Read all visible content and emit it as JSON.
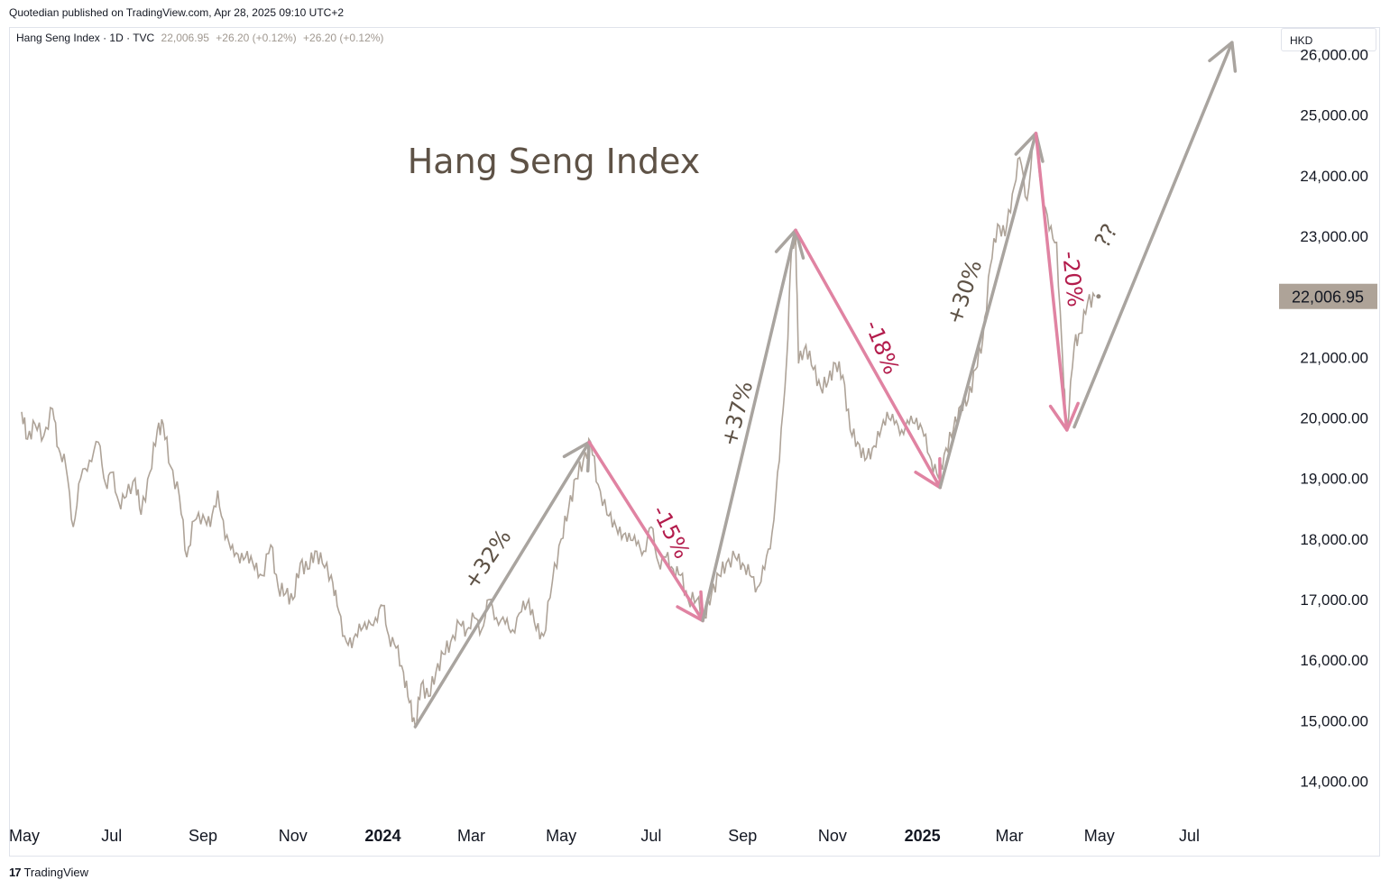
{
  "header": {
    "publisher": "Quotedian published on TradingView.com, Apr 28, 2025 09:10 UTC+2",
    "symbol_info": "Hang Seng Index · 1D · TVC",
    "last_value": "22,006.95",
    "change": "+26.20 (+0.12%)",
    "change_repeat": "+26.20 (+0.12%)",
    "currency": "HKD"
  },
  "footer": {
    "logo_mark": "17",
    "brand": "TradingView"
  },
  "colors": {
    "price_line": "#aea398",
    "up_arrow": "#a9a49f",
    "down_arrow": "#e083a2",
    "down_text": "#b31c4c",
    "title": "#5e5246",
    "price_tag_bg": "#aea398"
  },
  "chart_data": {
    "type": "line",
    "title": "Hang Seng Index",
    "ylim": [
      13500,
      26500
    ],
    "y_ticks": [
      "26,000.00",
      "25,000.00",
      "24,000.00",
      "23,000.00",
      "22,000.00",
      "21,000.00",
      "20,000.00",
      "19,000.00",
      "18,000.00",
      "17,000.00",
      "16,000.00",
      "15,000.00",
      "14,000.00"
    ],
    "y_tick_values": [
      26000,
      25000,
      24000,
      23000,
      22000,
      21000,
      20000,
      19000,
      18000,
      17000,
      16000,
      15000,
      14000
    ],
    "x_domain": [
      "2023-05-01",
      "2025-08-15"
    ],
    "x_ticks": [
      {
        "label": "May",
        "date": "2023-05-01",
        "bold": false
      },
      {
        "label": "Jul",
        "date": "2023-07-01",
        "bold": false
      },
      {
        "label": "Sep",
        "date": "2023-09-01",
        "bold": false
      },
      {
        "label": "Nov",
        "date": "2023-11-01",
        "bold": false
      },
      {
        "label": "2024",
        "date": "2024-01-01",
        "bold": true
      },
      {
        "label": "Mar",
        "date": "2024-03-01",
        "bold": false
      },
      {
        "label": "May",
        "date": "2024-05-01",
        "bold": false
      },
      {
        "label": "Jul",
        "date": "2024-07-01",
        "bold": false
      },
      {
        "label": "Sep",
        "date": "2024-09-01",
        "bold": false
      },
      {
        "label": "Nov",
        "date": "2024-11-01",
        "bold": false
      },
      {
        "label": "2025",
        "date": "2025-01-01",
        "bold": true
      },
      {
        "label": "Mar",
        "date": "2025-03-01",
        "bold": false
      },
      {
        "label": "May",
        "date": "2025-05-01",
        "bold": false
      },
      {
        "label": "Jul",
        "date": "2025-07-01",
        "bold": false
      }
    ],
    "last_price_label": "22,006.95",
    "last_price": 22006.95,
    "series": [
      {
        "values": [
          [
            "2023-05-01",
            20100
          ],
          [
            "2023-05-05",
            19650
          ],
          [
            "2023-05-10",
            19900
          ],
          [
            "2023-05-16",
            19700
          ],
          [
            "2023-05-22",
            20150
          ],
          [
            "2023-05-26",
            19500
          ],
          [
            "2023-05-31",
            19200
          ],
          [
            "2023-06-05",
            18200
          ],
          [
            "2023-06-10",
            19000
          ],
          [
            "2023-06-16",
            19300
          ],
          [
            "2023-06-22",
            19600
          ],
          [
            "2023-06-27",
            18900
          ],
          [
            "2023-07-01",
            19100
          ],
          [
            "2023-07-06",
            18600
          ],
          [
            "2023-07-11",
            18700
          ],
          [
            "2023-07-17",
            19000
          ],
          [
            "2023-07-21",
            18400
          ],
          [
            "2023-07-27",
            19100
          ],
          [
            "2023-08-01",
            19800
          ],
          [
            "2023-08-05",
            19900
          ],
          [
            "2023-08-10",
            19200
          ],
          [
            "2023-08-16",
            18700
          ],
          [
            "2023-08-21",
            17700
          ],
          [
            "2023-08-26",
            18300
          ],
          [
            "2023-09-01",
            18400
          ],
          [
            "2023-09-06",
            18200
          ],
          [
            "2023-09-11",
            18800
          ],
          [
            "2023-09-16",
            18000
          ],
          [
            "2023-09-21",
            17900
          ],
          [
            "2023-09-26",
            17600
          ],
          [
            "2023-10-01",
            17800
          ],
          [
            "2023-10-06",
            17500
          ],
          [
            "2023-10-11",
            17400
          ],
          [
            "2023-10-17",
            17900
          ],
          [
            "2023-10-22",
            17200
          ],
          [
            "2023-10-27",
            17100
          ],
          [
            "2023-11-01",
            17000
          ],
          [
            "2023-11-06",
            17600
          ],
          [
            "2023-11-11",
            17500
          ],
          [
            "2023-11-16",
            17800
          ],
          [
            "2023-11-21",
            17600
          ],
          [
            "2023-11-27",
            17400
          ],
          [
            "2023-12-01",
            16900
          ],
          [
            "2023-12-06",
            16400
          ],
          [
            "2023-12-11",
            16200
          ],
          [
            "2023-12-16",
            16600
          ],
          [
            "2023-12-21",
            16500
          ],
          [
            "2023-12-27",
            16700
          ],
          [
            "2024-01-01",
            16900
          ],
          [
            "2024-01-05",
            16400
          ],
          [
            "2024-01-10",
            16200
          ],
          [
            "2024-01-15",
            15800
          ],
          [
            "2024-01-19",
            15300
          ],
          [
            "2024-01-23",
            14900
          ],
          [
            "2024-01-27",
            15600
          ],
          [
            "2024-02-01",
            15400
          ],
          [
            "2024-02-06",
            15800
          ],
          [
            "2024-02-11",
            16100
          ],
          [
            "2024-02-16",
            16300
          ],
          [
            "2024-02-22",
            16600
          ],
          [
            "2024-02-27",
            16500
          ],
          [
            "2024-03-03",
            16700
          ],
          [
            "2024-03-08",
            16500
          ],
          [
            "2024-03-13",
            17000
          ],
          [
            "2024-03-18",
            16700
          ],
          [
            "2024-03-24",
            16600
          ],
          [
            "2024-03-29",
            16500
          ],
          [
            "2024-04-04",
            16800
          ],
          [
            "2024-04-09",
            17000
          ],
          [
            "2024-04-14",
            16500
          ],
          [
            "2024-04-19",
            16400
          ],
          [
            "2024-04-25",
            17300
          ],
          [
            "2024-05-01",
            18000
          ],
          [
            "2024-05-06",
            18500
          ],
          [
            "2024-05-11",
            19000
          ],
          [
            "2024-05-16",
            19300
          ],
          [
            "2024-05-21",
            19600
          ],
          [
            "2024-05-26",
            18900
          ],
          [
            "2024-06-01",
            18400
          ],
          [
            "2024-06-06",
            18300
          ],
          [
            "2024-06-11",
            18000
          ],
          [
            "2024-06-16",
            18100
          ],
          [
            "2024-06-21",
            17900
          ],
          [
            "2024-06-26",
            17800
          ],
          [
            "2024-07-01",
            18200
          ],
          [
            "2024-07-06",
            17600
          ],
          [
            "2024-07-11",
            17700
          ],
          [
            "2024-07-16",
            17500
          ],
          [
            "2024-07-21",
            17400
          ],
          [
            "2024-07-26",
            17000
          ],
          [
            "2024-08-01",
            17000
          ],
          [
            "2024-08-06",
            16700
          ],
          [
            "2024-08-11",
            17100
          ],
          [
            "2024-08-16",
            17400
          ],
          [
            "2024-08-21",
            17600
          ],
          [
            "2024-08-27",
            17700
          ],
          [
            "2024-09-01",
            17600
          ],
          [
            "2024-09-06",
            17400
          ],
          [
            "2024-09-11",
            17200
          ],
          [
            "2024-09-16",
            17500
          ],
          [
            "2024-09-21",
            18100
          ],
          [
            "2024-09-26",
            19300
          ],
          [
            "2024-10-01",
            21000
          ],
          [
            "2024-10-04",
            22700
          ],
          [
            "2024-10-07",
            23000
          ],
          [
            "2024-10-09",
            20900
          ],
          [
            "2024-10-14",
            21200
          ],
          [
            "2024-10-19",
            20800
          ],
          [
            "2024-10-24",
            20500
          ],
          [
            "2024-10-29",
            20600
          ],
          [
            "2024-11-03",
            20900
          ],
          [
            "2024-11-08",
            20700
          ],
          [
            "2024-11-13",
            19800
          ],
          [
            "2024-11-18",
            19600
          ],
          [
            "2024-11-23",
            19300
          ],
          [
            "2024-11-28",
            19500
          ],
          [
            "2024-12-03",
            19700
          ],
          [
            "2024-12-08",
            20100
          ],
          [
            "2024-12-13",
            19900
          ],
          [
            "2024-12-18",
            19800
          ],
          [
            "2024-12-23",
            19900
          ],
          [
            "2024-12-28",
            20000
          ],
          [
            "2025-01-02",
            19700
          ],
          [
            "2025-01-07",
            19300
          ],
          [
            "2025-01-12",
            19000
          ],
          [
            "2025-01-17",
            19500
          ],
          [
            "2025-01-22",
            19800
          ],
          [
            "2025-01-27",
            20200
          ],
          [
            "2025-02-01",
            20300
          ],
          [
            "2025-02-06",
            20800
          ],
          [
            "2025-02-11",
            21300
          ],
          [
            "2025-02-16",
            22500
          ],
          [
            "2025-02-21",
            23200
          ],
          [
            "2025-02-26",
            23000
          ],
          [
            "2025-03-03",
            23700
          ],
          [
            "2025-03-08",
            24300
          ],
          [
            "2025-03-13",
            23600
          ],
          [
            "2025-03-18",
            24700
          ],
          [
            "2025-03-23",
            23800
          ],
          [
            "2025-03-28",
            23100
          ],
          [
            "2025-04-02",
            22900
          ],
          [
            "2025-04-07",
            20500
          ],
          [
            "2025-04-09",
            19800
          ],
          [
            "2025-04-14",
            21200
          ],
          [
            "2025-04-18",
            21400
          ],
          [
            "2025-04-23",
            21900
          ],
          [
            "2025-04-28",
            22006.95
          ]
        ]
      }
    ],
    "annotations": [
      {
        "text": "Hang Seng Index",
        "kind": "title"
      },
      {
        "text": "+32%",
        "kind": "up",
        "from": [
          "2024-01-23",
          14900
        ],
        "to": [
          "2024-05-20",
          19600
        ],
        "label_at": [
          "2024-03-16",
          17600
        ],
        "rotate": -56
      },
      {
        "text": "-15%",
        "kind": "down",
        "from": [
          "2024-05-20",
          19600
        ],
        "to": [
          "2024-08-05",
          16650
        ],
        "label_at": [
          "2024-07-10",
          18060
        ],
        "rotate": 63
      },
      {
        "text": "+37%",
        "kind": "up",
        "from": [
          "2024-08-05",
          16650
        ],
        "to": [
          "2024-10-07",
          23100
        ],
        "label_at": [
          "2024-09-02",
          20040
        ],
        "rotate": -75
      },
      {
        "text": "-18%",
        "kind": "down",
        "from": [
          "2024-10-07",
          23100
        ],
        "to": [
          "2025-01-13",
          18850
        ],
        "label_at": [
          "2024-11-30",
          21120
        ],
        "rotate": 68
      },
      {
        "text": "+30%",
        "kind": "up",
        "from": [
          "2025-01-13",
          18850
        ],
        "to": [
          "2025-03-19",
          24700
        ],
        "label_at": [
          "2025-02-03",
          22040
        ],
        "rotate": -71
      },
      {
        "text": "-20%",
        "kind": "down",
        "from": [
          "2025-03-19",
          24700
        ],
        "to": [
          "2025-04-09",
          19800
        ],
        "label_at": [
          "2025-04-08",
          22280
        ],
        "rotate": 84
      },
      {
        "text": "??",
        "kind": "up",
        "from": [
          "2025-04-14",
          19850
        ],
        "to": [
          "2025-07-30",
          26200
        ],
        "label_at": [
          "2025-05-10",
          22950
        ],
        "rotate": -61
      }
    ]
  }
}
